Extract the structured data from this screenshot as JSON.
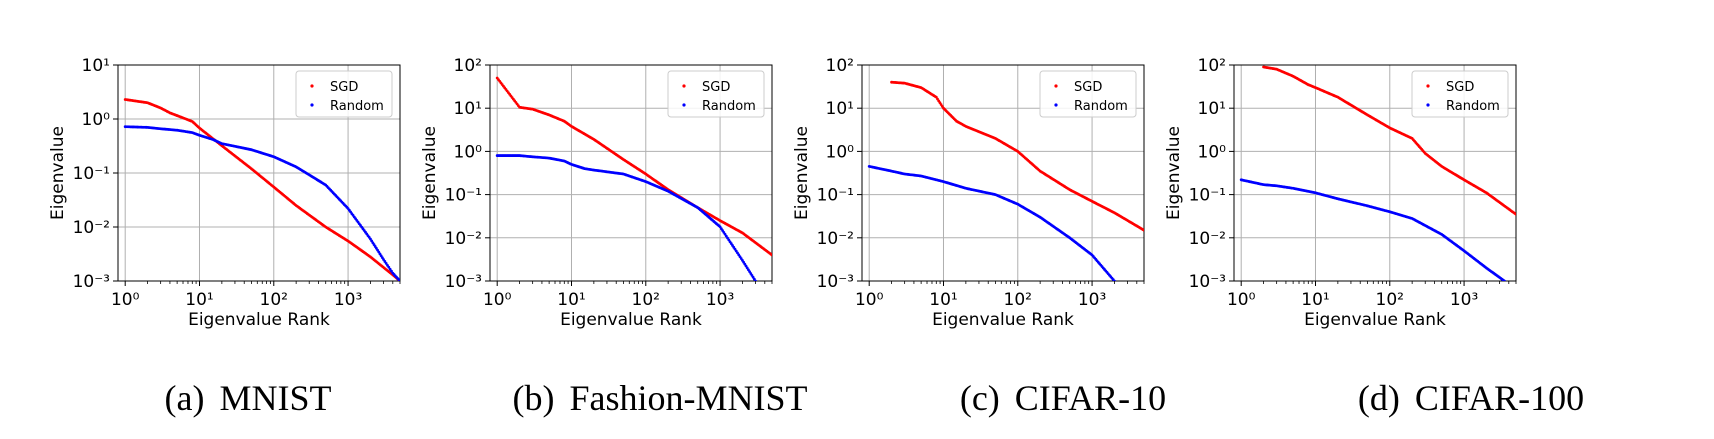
{
  "figure": {
    "panels": [
      {
        "caption_letter": "(a)",
        "caption_name": "MNIST"
      },
      {
        "caption_letter": "(b)",
        "caption_name": "Fashion-MNIST"
      },
      {
        "caption_letter": "(c)",
        "caption_name": "CIFAR-10"
      },
      {
        "caption_letter": "(d)",
        "caption_name": "CIFAR-100"
      }
    ]
  },
  "chart_data": [
    {
      "type": "scatter",
      "title": "MNIST",
      "xlabel": "Eigenvalue Rank",
      "ylabel": "Eigenvalue",
      "xscale": "log",
      "yscale": "log",
      "xlim": [
        0.8,
        5000
      ],
      "ylim": [
        0.001,
        10
      ],
      "xticks": [
        1,
        10,
        100,
        1000
      ],
      "yticks": [
        0.001,
        0.01,
        0.1,
        1,
        10
      ],
      "grid": true,
      "legend": "top-right",
      "series": [
        {
          "name": "SGD",
          "color": "#ff0000",
          "x": [
            1,
            2,
            3,
            4,
            6,
            8,
            10,
            20,
            50,
            100,
            200,
            500,
            1000,
            2000,
            4000,
            5000
          ],
          "y": [
            2.3,
            2.0,
            1.6,
            1.3,
            1.05,
            0.9,
            0.68,
            0.32,
            0.12,
            0.055,
            0.025,
            0.01,
            0.0055,
            0.0028,
            0.0013,
            0.001
          ]
        },
        {
          "name": "Random",
          "color": "#0000ff",
          "x": [
            1,
            2,
            3,
            5,
            8,
            10,
            15,
            20,
            50,
            100,
            200,
            500,
            1000,
            2000,
            3000,
            4000,
            5000
          ],
          "y": [
            0.72,
            0.7,
            0.66,
            0.62,
            0.56,
            0.5,
            0.42,
            0.35,
            0.27,
            0.2,
            0.13,
            0.06,
            0.022,
            0.006,
            0.0025,
            0.0014,
            0.001
          ]
        }
      ]
    },
    {
      "type": "scatter",
      "title": "Fashion-MNIST",
      "xlabel": "Eigenvalue Rank",
      "ylabel": "Eigenvalue",
      "xscale": "log",
      "yscale": "log",
      "xlim": [
        0.8,
        5000
      ],
      "ylim": [
        0.001,
        100
      ],
      "xticks": [
        1,
        10,
        100,
        1000
      ],
      "yticks": [
        0.001,
        0.01,
        0.1,
        1,
        10,
        100
      ],
      "grid": true,
      "legend": "top-right",
      "series": [
        {
          "name": "SGD",
          "color": "#ff0000",
          "x": [
            1,
            2,
            3,
            5,
            8,
            10,
            20,
            50,
            100,
            200,
            500,
            1000,
            2000,
            5000
          ],
          "y": [
            50,
            10.5,
            9.5,
            7,
            5,
            3.8,
            1.9,
            0.65,
            0.3,
            0.13,
            0.05,
            0.025,
            0.013,
            0.004
          ]
        },
        {
          "name": "Random",
          "color": "#0000ff",
          "x": [
            1,
            2,
            3,
            5,
            8,
            10,
            15,
            20,
            50,
            100,
            200,
            500,
            1000,
            2000,
            3000
          ],
          "y": [
            0.8,
            0.8,
            0.75,
            0.7,
            0.6,
            0.5,
            0.4,
            0.37,
            0.3,
            0.2,
            0.12,
            0.05,
            0.018,
            0.003,
            0.001
          ]
        }
      ]
    },
    {
      "type": "scatter",
      "title": "CIFAR-10",
      "xlabel": "Eigenvalue Rank",
      "ylabel": "Eigenvalue",
      "xscale": "log",
      "yscale": "log",
      "xlim": [
        0.8,
        5000
      ],
      "ylim": [
        0.001,
        100
      ],
      "xticks": [
        1,
        10,
        100,
        1000
      ],
      "yticks": [
        0.001,
        0.01,
        0.1,
        1,
        10,
        100
      ],
      "grid": true,
      "legend": "top-right",
      "series": [
        {
          "name": "SGD",
          "color": "#ff0000",
          "x": [
            2,
            3,
            5,
            8,
            10,
            15,
            20,
            50,
            100,
            200,
            500,
            1000,
            2000,
            5000
          ],
          "y": [
            40,
            38,
            30,
            18,
            10,
            5,
            3.8,
            2.0,
            1.0,
            0.35,
            0.13,
            0.07,
            0.038,
            0.015
          ]
        },
        {
          "name": "Random",
          "color": "#0000ff",
          "x": [
            1,
            2,
            3,
            5,
            10,
            20,
            50,
            100,
            200,
            500,
            1000,
            2000
          ],
          "y": [
            0.45,
            0.35,
            0.3,
            0.27,
            0.2,
            0.14,
            0.1,
            0.06,
            0.03,
            0.01,
            0.004,
            0.001
          ]
        }
      ]
    },
    {
      "type": "scatter",
      "title": "CIFAR-100",
      "xlabel": "Eigenvalue Rank",
      "ylabel": "Eigenvalue",
      "xscale": "log",
      "yscale": "log",
      "xlim": [
        0.8,
        5000
      ],
      "ylim": [
        0.001,
        100
      ],
      "xticks": [
        1,
        10,
        100,
        1000
      ],
      "yticks": [
        0.001,
        0.01,
        0.1,
        1,
        10,
        100
      ],
      "grid": true,
      "legend": "top-right",
      "series": [
        {
          "name": "SGD",
          "color": "#ff0000",
          "x": [
            2,
            3,
            5,
            8,
            10,
            20,
            50,
            100,
            200,
            300,
            500,
            1000,
            2000,
            5000
          ],
          "y": [
            90,
            80,
            55,
            35,
            30,
            18,
            7,
            3.5,
            2.0,
            0.9,
            0.45,
            0.22,
            0.11,
            0.035
          ]
        },
        {
          "name": "Random",
          "color": "#0000ff",
          "x": [
            1,
            2,
            3,
            5,
            10,
            20,
            50,
            100,
            200,
            500,
            1000,
            2000,
            3500
          ],
          "y": [
            0.22,
            0.17,
            0.16,
            0.14,
            0.11,
            0.08,
            0.055,
            0.04,
            0.028,
            0.012,
            0.005,
            0.002,
            0.001
          ]
        }
      ]
    }
  ]
}
